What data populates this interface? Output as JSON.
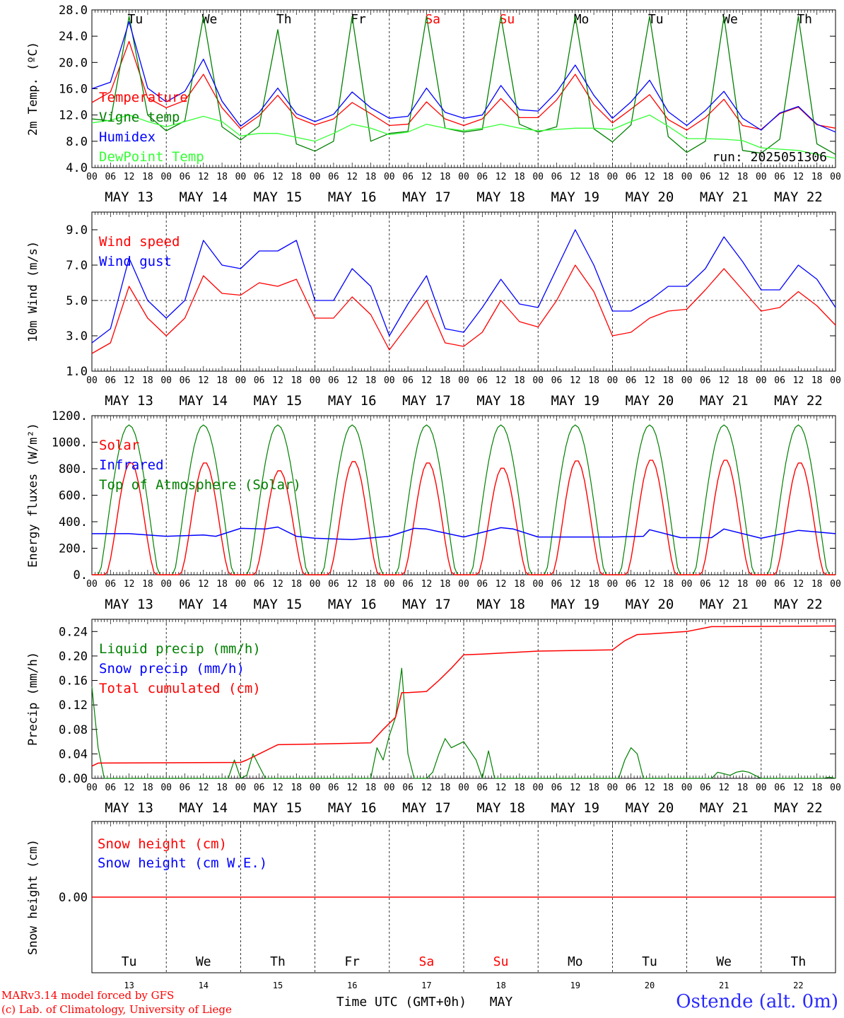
{
  "days": [
    "13",
    "14",
    "15",
    "16",
    "17",
    "18",
    "19",
    "20",
    "21",
    "22"
  ],
  "day_names": [
    "Tu",
    "We",
    "Th",
    "Fr",
    "Sa",
    "Su",
    "Mo",
    "Tu",
    "We",
    "Th"
  ],
  "weekend_index": [
    4,
    5
  ],
  "month_label": "MAY",
  "hour_labels": [
    "00",
    "06",
    "12",
    "18"
  ],
  "time_axis_label": "Time UTC (GMT+0h)",
  "footer": {
    "model": "MARv3.14 model forced by GFS",
    "credit": "(c) Lab. of Climatology, University of Liege",
    "station": "Ostende (alt. 0m)"
  },
  "colors": {
    "red": "#ff0000",
    "green": "#008000",
    "blue": "#0000ff",
    "lightgreen": "#33ff33",
    "grid": "#000000",
    "station": "#2a2aff"
  },
  "chart_data": [
    {
      "type": "line",
      "ylabel": "2m Temp. (ºC)",
      "ylim": [
        4,
        28
      ],
      "yticks": [
        "4.0",
        "8.0",
        "12.0",
        "16.0",
        "20.0",
        "24.0",
        "28.0"
      ],
      "ytick_values": [
        4,
        8,
        12,
        16,
        20,
        24,
        28
      ],
      "show_day_names_top": true,
      "run_label": "run: 2025051306",
      "x_hours": [
        0,
        6,
        12,
        18,
        24,
        30,
        36,
        42,
        48,
        54,
        60,
        66,
        72,
        78,
        84,
        90,
        96,
        102,
        108,
        114,
        120,
        126,
        132,
        138,
        144,
        150,
        156,
        162,
        168,
        174,
        180,
        186,
        192,
        198,
        204,
        210,
        216,
        222,
        228,
        234,
        240
      ],
      "series": [
        {
          "name": "Temperature",
          "color": "red",
          "values": [
            13.9,
            15.5,
            23.2,
            14.6,
            13.1,
            14.2,
            18.2,
            13.1,
            9.9,
            11.9,
            15.0,
            11.6,
            10.5,
            11.4,
            13.9,
            12.2,
            10.4,
            10.6,
            14.0,
            11.4,
            10.4,
            11.4,
            14.5,
            11.6,
            11.6,
            14.3,
            18.2,
            13.6,
            10.8,
            12.9,
            15.1,
            11.3,
            9.7,
            11.6,
            14.4,
            10.4,
            9.8,
            12.2,
            13.2,
            10.5,
            10.0
          ]
        },
        {
          "name": "Vigne temp",
          "color": "green",
          "values": [
            11.4,
            11.1,
            27.0,
            12.0,
            9.6,
            11.1,
            27.0,
            10.2,
            8.2,
            10.3,
            25.0,
            7.6,
            6.5,
            8.0,
            27.0,
            8.0,
            9.2,
            9.5,
            27.0,
            10.0,
            9.4,
            9.8,
            27.0,
            10.6,
            9.4,
            10.2,
            27.0,
            9.9,
            7.9,
            10.5,
            27.0,
            8.7,
            6.3,
            8.0,
            27.0,
            6.6,
            6.2,
            8.3,
            27.0,
            7.6,
            6.0
          ]
        },
        {
          "name": "Humidex",
          "color": "blue",
          "values": [
            16.0,
            17.0,
            26.2,
            16.1,
            14.0,
            15.6,
            20.5,
            14.1,
            10.3,
            12.4,
            16.1,
            12.2,
            11.0,
            12.1,
            15.5,
            13.1,
            11.5,
            11.8,
            16.1,
            12.4,
            11.5,
            12.0,
            16.5,
            12.8,
            12.6,
            15.5,
            19.6,
            15.0,
            11.5,
            14.0,
            17.3,
            12.5,
            10.4,
            12.7,
            15.6,
            11.5,
            9.7,
            12.3,
            13.3,
            10.6,
            9.4
          ]
        },
        {
          "name": "DewPoint Temp",
          "color": "lightgreen",
          "values": [
            10.8,
            11.2,
            12.0,
            11.0,
            10.2,
            11.0,
            11.8,
            11.0,
            8.8,
            9.2,
            9.2,
            8.6,
            8.0,
            9.2,
            10.6,
            10.0,
            9.0,
            9.4,
            10.6,
            10.0,
            9.6,
            10.0,
            10.6,
            10.0,
            9.6,
            9.8,
            10.0,
            10.0,
            9.8,
            11.0,
            12.0,
            10.3,
            8.4,
            8.4,
            8.3,
            8.1,
            7.0,
            6.8,
            6.6,
            6.0,
            5.4
          ]
        }
      ]
    },
    {
      "type": "line",
      "ylabel": "10m Wind (m/s)",
      "ylim": [
        1,
        10
      ],
      "yticks": [
        "1.0",
        "3.0",
        "5.0",
        "7.0",
        "9.0"
      ],
      "ytick_values": [
        1,
        3,
        5,
        7,
        9
      ],
      "reference_line": 5,
      "x_hours": [
        0,
        6,
        12,
        18,
        24,
        30,
        36,
        42,
        48,
        54,
        60,
        66,
        72,
        78,
        84,
        90,
        96,
        102,
        108,
        114,
        120,
        126,
        132,
        138,
        144,
        150,
        156,
        162,
        168,
        174,
        180,
        186,
        192,
        198,
        204,
        210,
        216,
        222,
        228,
        234,
        240
      ],
      "series": [
        {
          "name": "Wind speed",
          "color": "red",
          "values": [
            2.0,
            2.6,
            5.8,
            4.0,
            3.0,
            4.0,
            6.4,
            5.4,
            5.3,
            6.0,
            5.8,
            6.2,
            4.0,
            4.0,
            5.2,
            4.2,
            2.2,
            3.6,
            5.0,
            2.6,
            2.4,
            3.2,
            5.0,
            3.8,
            3.5,
            5.0,
            7.0,
            5.5,
            3.0,
            3.2,
            4.0,
            4.4,
            4.5,
            5.6,
            6.8,
            5.6,
            4.4,
            4.6,
            5.5,
            4.7,
            3.6
          ]
        },
        {
          "name": "Wind gust",
          "color": "blue",
          "values": [
            2.6,
            3.4,
            7.4,
            5.0,
            4.0,
            5.0,
            8.4,
            7.0,
            6.8,
            7.8,
            7.8,
            8.4,
            5.0,
            5.0,
            6.8,
            5.8,
            3.0,
            4.8,
            6.4,
            3.4,
            3.2,
            4.6,
            6.2,
            4.8,
            4.6,
            6.8,
            9.0,
            7.0,
            4.4,
            4.4,
            5.0,
            5.8,
            5.8,
            6.8,
            8.6,
            7.2,
            5.6,
            5.6,
            7.0,
            6.2,
            4.6
          ]
        }
      ]
    },
    {
      "type": "line",
      "ylabel": "Energy fluxes (W/m²)",
      "ylim": [
        0,
        1200
      ],
      "yticks": [
        "0.",
        "200.",
        "400.",
        "600.",
        "800.",
        "1000.",
        "1200."
      ],
      "ytick_values": [
        0,
        200,
        400,
        600,
        800,
        1000,
        1200
      ],
      "solar_peaks": [
        850,
        850,
        790,
        860,
        850,
        810,
        865,
        870,
        870,
        850
      ],
      "toa_peak": 1130,
      "infrared": {
        "x_hours": [
          0,
          12,
          24,
          36,
          40,
          48,
          56,
          60,
          66,
          72,
          84,
          96,
          104,
          108,
          120,
          132,
          136,
          144,
          156,
          168,
          178,
          180,
          190,
          200,
          204,
          216,
          228,
          240
        ],
        "values": [
          310,
          310,
          290,
          300,
          290,
          350,
          345,
          360,
          290,
          275,
          265,
          290,
          350,
          345,
          285,
          355,
          345,
          285,
          285,
          285,
          290,
          340,
          280,
          280,
          345,
          275,
          335,
          310
        ]
      },
      "series": [
        {
          "name": "Solar",
          "color": "red"
        },
        {
          "name": "Infrared",
          "color": "blue"
        },
        {
          "name": "Top of Atmosphere (Solar)",
          "color": "green"
        }
      ]
    },
    {
      "type": "area",
      "ylabel": "Precip (mm/h)",
      "ylim": [
        0,
        0.26
      ],
      "yticks": [
        "0.00",
        "0.04",
        "0.08",
        "0.12",
        "0.16",
        "0.20",
        "0.24"
      ],
      "ytick_values": [
        0,
        0.04,
        0.08,
        0.12,
        0.16,
        0.2,
        0.24
      ],
      "liquid": {
        "x_hours": [
          0,
          2,
          4,
          6,
          44,
          46,
          48,
          50,
          52,
          56,
          60,
          64,
          72,
          90,
          92,
          94,
          96,
          98,
          100,
          102,
          104,
          106,
          108,
          110,
          112,
          114,
          116,
          120,
          124,
          126,
          128,
          130,
          134,
          138,
          140,
          142,
          148,
          150,
          170,
          172,
          174,
          176,
          178,
          200,
          202,
          206,
          208,
          210,
          212,
          214,
          216,
          236,
          238,
          240
        ],
        "values": [
          0.15,
          0.05,
          0,
          0,
          0,
          0.03,
          0,
          0.005,
          0.04,
          0,
          0,
          0,
          0,
          0,
          0.05,
          0.03,
          0.07,
          0.1,
          0.18,
          0.04,
          0,
          0,
          0,
          0.01,
          0.04,
          0.065,
          0.05,
          0.06,
          0.03,
          0,
          0.045,
          0,
          0,
          0,
          0,
          0,
          0,
          0,
          0,
          0.03,
          0.05,
          0.04,
          0,
          0,
          0.01,
          0.005,
          0.01,
          0.012,
          0.01,
          0.005,
          0,
          0,
          0.002,
          0
        ]
      },
      "cumulated": {
        "x_hours": [
          0,
          2,
          48,
          50,
          54,
          60,
          72,
          90,
          94,
          98,
          100,
          102,
          108,
          112,
          116,
          120,
          126,
          144,
          168,
          172,
          176,
          180,
          192,
          200,
          204,
          240
        ],
        "values": [
          0.02,
          0.025,
          0.026,
          0.03,
          0.04,
          0.055,
          0.056,
          0.058,
          0.08,
          0.1,
          0.14,
          0.14,
          0.142,
          0.16,
          0.18,
          0.202,
          0.203,
          0.208,
          0.21,
          0.225,
          0.235,
          0.236,
          0.24,
          0.248,
          0.248,
          0.249
        ]
      },
      "series": [
        {
          "name": "Liquid precip (mm/h)",
          "color": "green"
        },
        {
          "name": "Snow precip (mm/h)",
          "color": "blue"
        },
        {
          "name": "Total cumulated (cm)",
          "color": "red"
        }
      ]
    },
    {
      "type": "line",
      "ylabel": "Snow height (cm)",
      "ylim": [
        -1,
        1
      ],
      "yticks": [
        "0.00"
      ],
      "ytick_values": [
        0
      ],
      "constant_value": 0,
      "series": [
        {
          "name": "Snow height (cm)",
          "color": "red"
        },
        {
          "name": "Snow height (cm W.E.)",
          "color": "blue"
        }
      ]
    }
  ]
}
